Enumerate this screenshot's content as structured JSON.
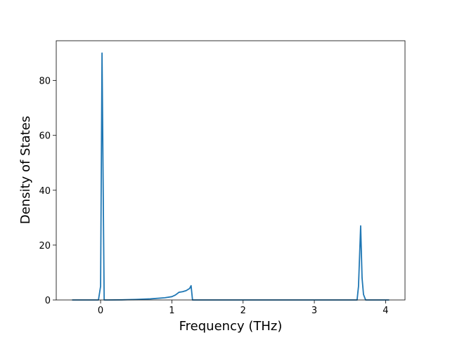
{
  "chart_data": {
    "type": "line",
    "x_label": "Frequency (THz)",
    "y_label": "Density of States",
    "x": [
      -0.4,
      -0.2,
      -0.03,
      0.0,
      0.02,
      0.05,
      0.1,
      0.3,
      0.5,
      0.7,
      0.9,
      1.0,
      1.05,
      1.1,
      1.15,
      1.2,
      1.25,
      1.27,
      1.29,
      1.5,
      2.0,
      3.0,
      3.6,
      3.62,
      3.65,
      3.67,
      3.69,
      3.72,
      3.9,
      4.05
    ],
    "series": [
      {
        "color": "#1f77b4",
        "values": [
          0,
          0,
          0,
          5,
          90,
          0,
          0,
          0.05,
          0.2,
          0.4,
          0.8,
          1.2,
          1.8,
          2.8,
          3.0,
          3.4,
          4.2,
          5.2,
          0,
          0,
          0,
          0,
          0,
          5,
          27,
          8,
          2,
          0,
          0,
          0
        ]
      }
    ],
    "xlim": [
      -0.6225,
      4.2725
    ],
    "ylim": [
      0,
      94.5
    ],
    "xticks": [
      0,
      1,
      2,
      3,
      4
    ],
    "yticks": [
      0,
      20,
      40,
      60,
      80
    ]
  }
}
